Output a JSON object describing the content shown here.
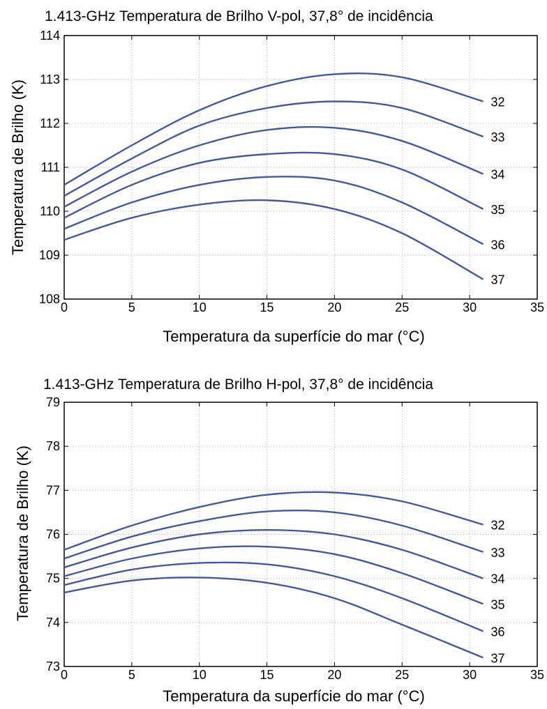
{
  "chart_data": [
    {
      "type": "line",
      "title": "1.413-GHz Temperatura de Brilho V-pol, 37,8° de incidência",
      "xlabel": "Temperatura da superfície do mar (°C)",
      "ylabel": "Temperatura de Brilho (K)",
      "xlim": [
        0,
        35
      ],
      "ylim": [
        108,
        114
      ],
      "xticks": [
        0,
        5,
        10,
        15,
        20,
        25,
        30,
        35
      ],
      "yticks": [
        108,
        109,
        110,
        111,
        112,
        113,
        114
      ],
      "grid": true,
      "line_color": "#4457a5",
      "x": [
        0,
        5,
        10,
        15,
        20,
        25,
        31
      ],
      "series": [
        {
          "label": "32",
          "values": [
            110.6,
            111.5,
            112.3,
            112.85,
            113.12,
            113.05,
            112.5
          ]
        },
        {
          "label": "33",
          "values": [
            110.35,
            111.2,
            111.95,
            112.35,
            112.5,
            112.35,
            111.7
          ]
        },
        {
          "label": "34",
          "values": [
            110.1,
            110.9,
            111.5,
            111.85,
            111.9,
            111.6,
            110.85
          ]
        },
        {
          "label": "35",
          "values": [
            109.85,
            110.6,
            111.1,
            111.3,
            111.3,
            110.95,
            110.05
          ]
        },
        {
          "label": "36",
          "values": [
            109.6,
            110.2,
            110.6,
            110.78,
            110.7,
            110.2,
            109.25
          ]
        },
        {
          "label": "37",
          "values": [
            109.35,
            109.85,
            110.15,
            110.25,
            110.05,
            109.5,
            108.45
          ]
        }
      ]
    },
    {
      "type": "line",
      "title": "1.413-GHz  Temperatura de Brilho H-pol, 37,8° de incidência",
      "xlabel": "Temperatura da superfície do mar (°C)",
      "ylabel": "Temperatura de Brilho (K)",
      "xlim": [
        0,
        35
      ],
      "ylim": [
        73,
        79
      ],
      "xticks": [
        0,
        5,
        10,
        15,
        20,
        25,
        30,
        35
      ],
      "yticks": [
        73,
        74,
        75,
        76,
        77,
        78,
        79
      ],
      "grid": true,
      "line_color": "#4457a5",
      "x": [
        0,
        5,
        10,
        15,
        20,
        25,
        31
      ],
      "series": [
        {
          "label": "32",
          "values": [
            75.65,
            76.2,
            76.62,
            76.9,
            76.95,
            76.75,
            76.22
          ]
        },
        {
          "label": "33",
          "values": [
            75.45,
            75.95,
            76.3,
            76.52,
            76.5,
            76.2,
            75.6
          ]
        },
        {
          "label": "34",
          "values": [
            75.25,
            75.7,
            76.0,
            76.1,
            76.0,
            75.65,
            75.0
          ]
        },
        {
          "label": "35",
          "values": [
            75.05,
            75.45,
            75.68,
            75.72,
            75.55,
            75.12,
            74.42
          ]
        },
        {
          "label": "36",
          "values": [
            74.85,
            75.2,
            75.35,
            75.32,
            75.05,
            74.55,
            73.8
          ]
        },
        {
          "label": "37",
          "values": [
            74.68,
            74.95,
            75.02,
            74.9,
            74.55,
            73.95,
            73.2
          ]
        }
      ]
    }
  ]
}
